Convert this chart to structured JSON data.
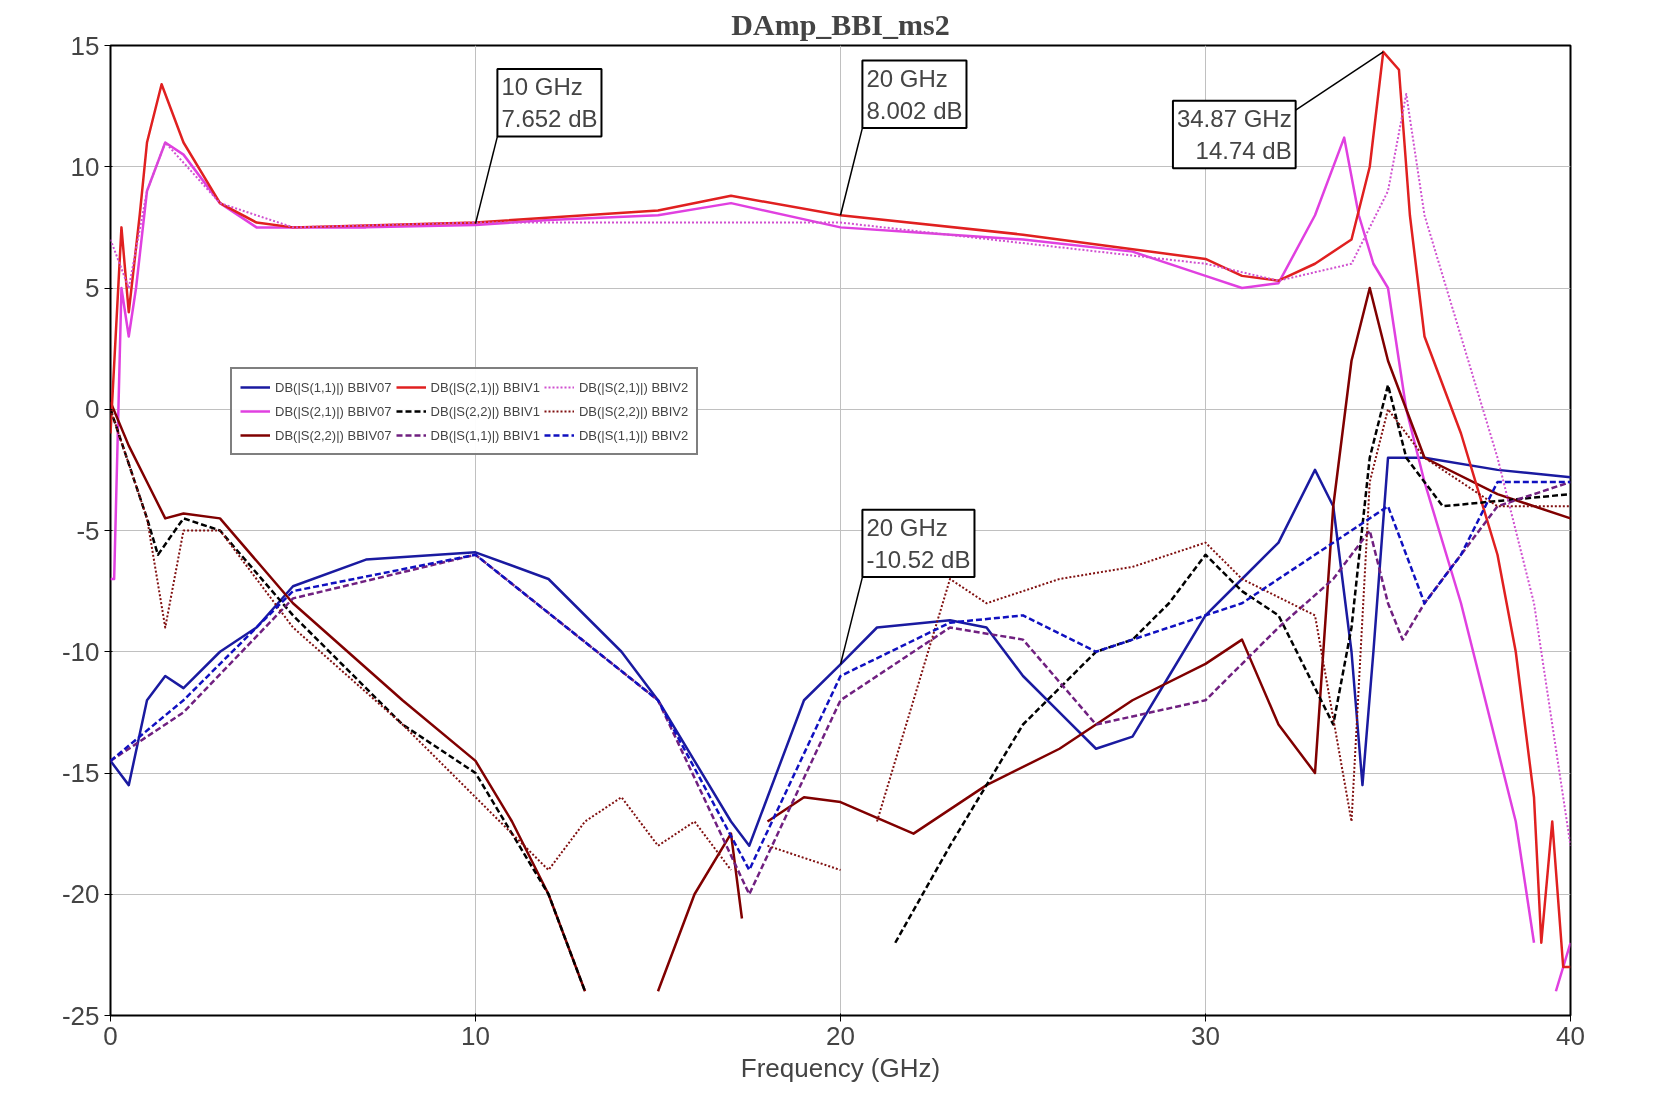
{
  "chart_data": {
    "type": "line",
    "title": "DAmp_BBI_ms2",
    "xlabel": "Frequency (GHz)",
    "xlim": [
      0,
      40
    ],
    "ylim": [
      -25,
      15
    ],
    "xticks": [
      0,
      10,
      20,
      30,
      40
    ],
    "yticks": [
      -25,
      -20,
      -15,
      -10,
      -5,
      0,
      5,
      10,
      15
    ],
    "grid": true,
    "legend": "top left",
    "annotations": [
      {
        "text": "10 GHz\n7.652 dB",
        "x": 10,
        "y": 7.652
      },
      {
        "text": "20 GHz\n8.002 dB",
        "x": 20,
        "y": 8.002
      },
      {
        "text": "34.87 GHz\n14.74 dB",
        "x": 34.87,
        "y": 14.74
      },
      {
        "text": "20 GHz\n-10.52 dB",
        "x": 20,
        "y": -10.52
      }
    ],
    "series": [
      {
        "name": "DB(|S(1,1)|) BBIV07",
        "color": "#1a1aa0",
        "line_style": "solid",
        "x": [
          0,
          0.5,
          1,
          1.5,
          2,
          3,
          4,
          5,
          7,
          10,
          12,
          14,
          15,
          16,
          17,
          17.5,
          18,
          19,
          20,
          21,
          23,
          24,
          25,
          26,
          27,
          28,
          29,
          30,
          31,
          32,
          33,
          33.5,
          34,
          34.3,
          34.6,
          35,
          36,
          38,
          40
        ],
        "values": [
          -14.5,
          -15.5,
          -12,
          -11,
          -11.5,
          -10,
          -9,
          -7.3,
          -6.2,
          -5.9,
          -7,
          -10,
          -12,
          -14.5,
          -17,
          -18,
          -16,
          -12,
          -10.52,
          -9,
          -8.7,
          -9,
          -11,
          -12.5,
          -14,
          -13.5,
          -11,
          -8.5,
          -7,
          -5.5,
          -2.5,
          -4,
          -10,
          -15.5,
          -10,
          -2,
          -2,
          -2.5,
          -2.8
        ]
      },
      {
        "name": "DB(|S(2,1)|) BBIV07",
        "color": "#e040e0",
        "line_style": "solid",
        "x": [
          0,
          0.1,
          0.3,
          0.5,
          0.7,
          1,
          1.5,
          2,
          3,
          4,
          5,
          7,
          10,
          12,
          15,
          17,
          20,
          22,
          25,
          28,
          30,
          31,
          32,
          33,
          33.8,
          34.2,
          34.6,
          35,
          35.5,
          36,
          37,
          38,
          38.5,
          39,
          39.3,
          39.6,
          40
        ],
        "values": [
          -7,
          -7,
          5,
          3,
          5,
          9,
          11,
          10.5,
          8.5,
          7.5,
          7.5,
          7.5,
          7.6,
          7.8,
          8,
          8.5,
          7.5,
          7.3,
          7,
          6.5,
          5.5,
          5,
          5.2,
          8,
          11.2,
          8,
          6,
          5,
          0,
          -3,
          -8,
          -14,
          -17,
          -22,
          null,
          -24,
          -22
        ]
      },
      {
        "name": "DB(|S(2,2)|) BBIV07",
        "color": "#800000",
        "line_style": "solid",
        "x": [
          0,
          0.5,
          1,
          1.5,
          2,
          3,
          5,
          8,
          10,
          11,
          12,
          13,
          13.3,
          15,
          16,
          17,
          17.3,
          17.5,
          18,
          19,
          20,
          22,
          24,
          26,
          28,
          30,
          31,
          32,
          33,
          33.5,
          34,
          34.5,
          35,
          36,
          38,
          40
        ],
        "values": [
          0.3,
          -1.5,
          -3,
          -4.5,
          -4.3,
          -4.5,
          -8,
          -12,
          -14.5,
          -17,
          -20,
          -24,
          null,
          -24,
          -20,
          -17.5,
          -21,
          null,
          -17,
          -16,
          -16.2,
          -17.5,
          -15.5,
          -14,
          -12,
          -10.5,
          -9.5,
          -13,
          -15,
          -4,
          2,
          5,
          2,
          -2,
          -3.5,
          -4.5
        ]
      },
      {
        "name": "DB(|S(2,1)|) BBIV1",
        "color": "#e02020",
        "line_style": "solid",
        "x": [
          0,
          0.3,
          0.5,
          0.8,
          1,
          1.4,
          2,
          3,
          4,
          5,
          10,
          15,
          17,
          20,
          25,
          30,
          31,
          32,
          33,
          34,
          34.5,
          34.87,
          35.3,
          35.6,
          36,
          37,
          38,
          38.5,
          39,
          39.2,
          39.5,
          39.8,
          40
        ],
        "values": [
          -1,
          7.5,
          4,
          8,
          11,
          13.4,
          11,
          8.5,
          7.7,
          7.5,
          7.7,
          8.2,
          8.8,
          8,
          7.2,
          6.2,
          5.5,
          5.3,
          6,
          7,
          10,
          14.74,
          14,
          8,
          3,
          -1,
          -6,
          -10,
          -16,
          -22,
          -17,
          -23,
          -23
        ]
      },
      {
        "name": "DB(|S(2,2)|) BBIV1",
        "color": "#000000",
        "line_style": "dashed",
        "x": [
          0,
          1,
          1.3,
          2,
          3,
          5,
          8,
          10,
          12,
          13,
          14,
          20.5,
          21.5,
          23,
          25,
          27,
          28,
          29,
          30,
          31,
          32,
          33.5,
          34,
          34.5,
          35,
          35.5,
          36.5,
          40
        ],
        "values": [
          0,
          -4.5,
          -6,
          -4.5,
          -5,
          -8.5,
          -13,
          -15,
          -20,
          -24,
          null,
          null,
          -22,
          -18,
          -13,
          -10,
          -9.5,
          -8,
          -6,
          -7.5,
          -8.5,
          -13,
          -9,
          -2,
          1,
          -2,
          -4,
          -3.5
        ]
      },
      {
        "name": "DB(|S(1,1)|) BBIV1",
        "color": "#702080",
        "line_style": "dashed",
        "x": [
          0,
          2,
          5,
          10,
          15,
          17.5,
          20,
          23,
          25,
          27,
          30,
          32,
          33.5,
          34.5,
          35,
          35.4,
          36,
          37,
          38,
          40
        ],
        "values": [
          -14.5,
          -12.5,
          -7.8,
          -6,
          -12,
          -20,
          -12,
          -9,
          -9.5,
          -13,
          -12,
          -9,
          -7,
          -5,
          -8,
          -9.5,
          -8,
          -6,
          -4,
          -3
        ]
      },
      {
        "name": "DB(|S(2,1)|) BBIV2",
        "color": "#d050d0",
        "line_style": "dotted",
        "x": [
          0,
          0.5,
          1,
          1.5,
          3,
          5,
          10,
          20,
          30,
          32,
          34,
          35,
          35.5,
          36,
          37,
          38,
          39,
          40
        ],
        "values": [
          7,
          5,
          9,
          11,
          8.5,
          7.5,
          7.7,
          7.7,
          6,
          5.3,
          6,
          9,
          13,
          8,
          3,
          -2,
          -8,
          -18
        ]
      },
      {
        "name": "DB(|S(2,2)|) BBIV2",
        "color": "#801010",
        "line_style": "dotted",
        "x": [
          0,
          1,
          1.5,
          2,
          3,
          5,
          8,
          10,
          12,
          13,
          14,
          15,
          16,
          17,
          17.5,
          18,
          20,
          20.5,
          21,
          22,
          23,
          24,
          26,
          28,
          29,
          30,
          31,
          33,
          34,
          34.5,
          35,
          36,
          38,
          40
        ],
        "values": [
          0,
          -4.5,
          -9,
          -5,
          -5,
          -9,
          -13,
          -16,
          -19,
          -17,
          -16,
          -18,
          -17,
          -19,
          null,
          -18,
          -19,
          null,
          -17,
          -12,
          -7,
          -8,
          -7,
          -6.5,
          -6,
          -5.5,
          -7,
          -8.5,
          -17,
          -3,
          0,
          -2,
          -4,
          -4
        ]
      },
      {
        "name": "DB(|S(1,1)|) BBIV2",
        "color": "#1010c0",
        "line_style": "dashed",
        "x": [
          0,
          2,
          5,
          10,
          15,
          17.5,
          20,
          23,
          25,
          27,
          29,
          31,
          33,
          34,
          35,
          36,
          37,
          38,
          40
        ],
        "values": [
          -14.5,
          -12,
          -7.5,
          -6,
          -12,
          -19,
          -11,
          -8.8,
          -8.5,
          -10,
          -9,
          -8,
          -6,
          -5,
          -4,
          -8,
          -6,
          -3,
          -3
        ]
      }
    ]
  }
}
